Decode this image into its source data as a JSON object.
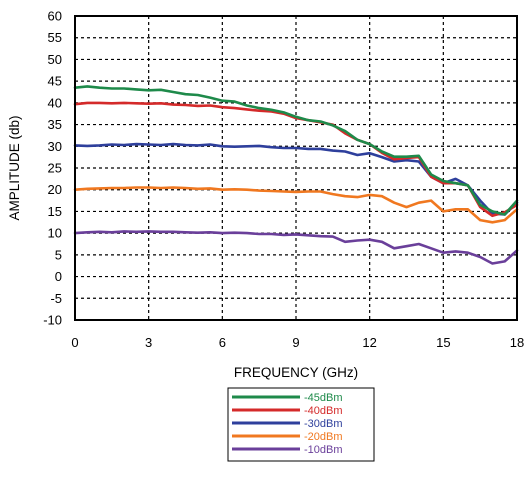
{
  "chart_data": {
    "type": "line",
    "title": "",
    "xlabel": "FREQUENCY (GHz)",
    "ylabel": "AMPLITUDE (db)",
    "xlim": [
      0,
      18
    ],
    "ylim": [
      -10,
      60
    ],
    "xticks": [
      0,
      3,
      6,
      9,
      12,
      15,
      18
    ],
    "yticks": [
      60,
      55,
      50,
      45,
      40,
      35,
      30,
      25,
      20,
      15,
      10,
      5,
      0,
      -5,
      -10
    ],
    "grid": true,
    "legend_position": "below",
    "series": [
      {
        "name": "-45dBm",
        "color": "#1e8a4a",
        "x": [
          0,
          0.5,
          1,
          1.5,
          2,
          2.5,
          3,
          3.5,
          4,
          4.5,
          5,
          5.5,
          6,
          6.5,
          7,
          7.5,
          8,
          8.5,
          9,
          9.5,
          10,
          10.5,
          11,
          11.5,
          12,
          12.5,
          13,
          13.5,
          14,
          14.5,
          15,
          15.5,
          16,
          16.5,
          17,
          17.5,
          18
        ],
        "y": [
          43.5,
          43.8,
          43.5,
          43.3,
          43.3,
          43.1,
          42.9,
          43.0,
          42.5,
          42.0,
          41.8,
          41.2,
          40.5,
          40.3,
          39.4,
          38.8,
          38.4,
          37.8,
          36.8,
          36.0,
          35.7,
          34.8,
          33.5,
          31.5,
          30.5,
          28.8,
          27.6,
          27.6,
          27.8,
          23.5,
          22.0,
          21.5,
          21.0,
          16.5,
          15.0,
          14.3,
          17.5
        ]
      },
      {
        "name": "-40dBm",
        "color": "#d42a2a",
        "x": [
          0,
          0.5,
          1,
          1.5,
          2,
          2.5,
          3,
          3.5,
          4,
          4.5,
          5,
          5.5,
          6,
          6.5,
          7,
          7.5,
          8,
          8.5,
          9,
          9.5,
          10,
          10.5,
          11,
          11.5,
          12,
          12.5,
          13,
          13.5,
          14,
          14.5,
          15,
          15.5,
          16,
          16.5,
          17,
          17.5,
          18
        ],
        "y": [
          39.7,
          40.0,
          40.0,
          39.9,
          40.0,
          39.9,
          39.8,
          39.9,
          39.6,
          39.5,
          39.3,
          39.4,
          39.0,
          38.8,
          38.5,
          38.2,
          38.0,
          37.5,
          36.5,
          36.0,
          35.5,
          35.0,
          33.0,
          31.5,
          30.5,
          28.5,
          27.0,
          27.3,
          27.5,
          23.0,
          21.5,
          21.5,
          21.0,
          16.0,
          14.0,
          14.8,
          16.5
        ]
      },
      {
        "name": "-30dBm",
        "color": "#2e3f9c",
        "x": [
          0,
          0.5,
          1,
          1.5,
          2,
          2.5,
          3,
          3.5,
          4,
          4.5,
          5,
          5.5,
          6,
          6.5,
          7,
          7.5,
          8,
          8.5,
          9,
          9.5,
          10,
          10.5,
          11,
          11.5,
          12,
          12.5,
          13,
          13.5,
          14,
          14.5,
          15,
          15.5,
          16,
          16.5,
          17,
          17.5,
          18
        ],
        "y": [
          30.2,
          30.1,
          30.2,
          30.4,
          30.3,
          30.5,
          30.4,
          30.3,
          30.5,
          30.3,
          30.2,
          30.4,
          30.0,
          29.9,
          30.0,
          30.1,
          29.8,
          29.6,
          29.6,
          29.4,
          29.4,
          29.0,
          28.8,
          28.0,
          28.4,
          27.5,
          26.5,
          26.8,
          26.5,
          23.0,
          21.5,
          22.5,
          21.0,
          17.5,
          14.5,
          14.3,
          17.0
        ]
      },
      {
        "name": "-20dBm",
        "color": "#f07820",
        "x": [
          0,
          0.5,
          1,
          1.5,
          2,
          2.5,
          3,
          3.5,
          4,
          4.5,
          5,
          5.5,
          6,
          6.5,
          7,
          7.5,
          8,
          8.5,
          9,
          9.5,
          10,
          10.5,
          11,
          11.5,
          12,
          12.5,
          13,
          13.5,
          14,
          14.5,
          15,
          15.5,
          16,
          16.5,
          17,
          17.5,
          18
        ],
        "y": [
          20.0,
          20.2,
          20.3,
          20.4,
          20.4,
          20.5,
          20.5,
          20.4,
          20.5,
          20.4,
          20.2,
          20.3,
          20.0,
          20.1,
          20.0,
          19.8,
          19.7,
          19.6,
          19.5,
          19.6,
          19.6,
          19.0,
          18.5,
          18.3,
          18.8,
          18.5,
          17.0,
          16.0,
          17.0,
          17.5,
          15.0,
          15.5,
          15.5,
          13.0,
          12.5,
          13.0,
          15.5
        ]
      },
      {
        "name": "-10dBm",
        "color": "#6a3f9a",
        "x": [
          0,
          0.5,
          1,
          1.5,
          2,
          2.5,
          3,
          3.5,
          4,
          4.5,
          5,
          5.5,
          6,
          6.5,
          7,
          7.5,
          8,
          8.5,
          9,
          9.5,
          10,
          10.5,
          11,
          11.5,
          12,
          12.5,
          13,
          13.5,
          14,
          14.5,
          15,
          15.5,
          16,
          16.5,
          17,
          17.5,
          18
        ],
        "y": [
          10.0,
          10.2,
          10.3,
          10.2,
          10.4,
          10.3,
          10.4,
          10.3,
          10.3,
          10.2,
          10.1,
          10.2,
          10.0,
          10.1,
          10.0,
          9.8,
          9.8,
          9.6,
          9.7,
          9.5,
          9.3,
          9.2,
          8.0,
          8.3,
          8.5,
          8.0,
          6.5,
          7.0,
          7.5,
          6.5,
          5.5,
          5.8,
          5.5,
          4.5,
          3.0,
          3.5,
          6.0
        ]
      }
    ]
  }
}
